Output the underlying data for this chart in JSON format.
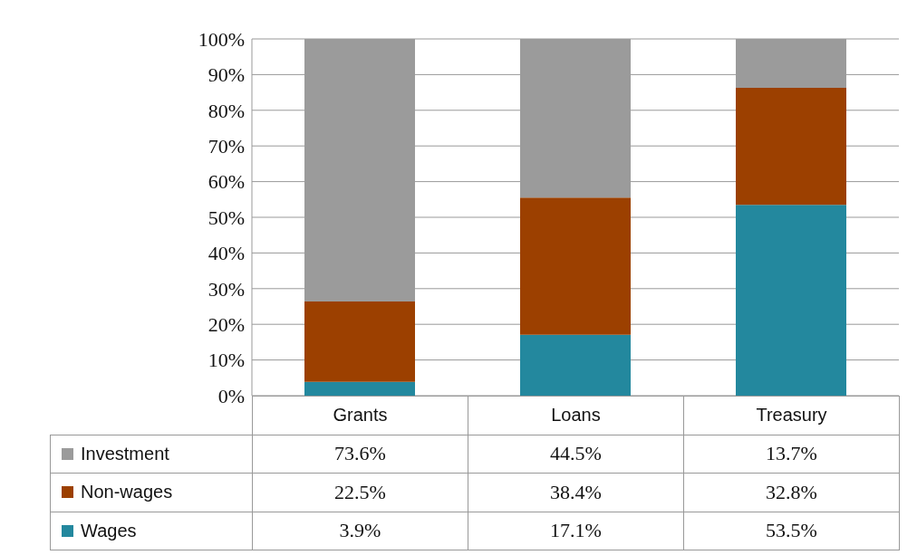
{
  "chart_data": {
    "type": "bar",
    "stacked": true,
    "categories": [
      "Grants",
      "Loans",
      "Treasury"
    ],
    "series": [
      {
        "name": "Wages",
        "color": "#23889e",
        "values": [
          3.9,
          17.1,
          53.5
        ],
        "value_labels": [
          "3.9%",
          "17.1%",
          "53.5%"
        ]
      },
      {
        "name": "Non-wages",
        "color": "#9c4000",
        "values": [
          22.5,
          38.4,
          32.8
        ],
        "value_labels": [
          "22.5%",
          "38.4%",
          "32.8%"
        ]
      },
      {
        "name": "Investment",
        "color": "#9b9b9b",
        "values": [
          73.6,
          44.5,
          13.7
        ],
        "value_labels": [
          "73.6%",
          "44.5%",
          "13.7%"
        ]
      }
    ],
    "ylim": [
      0,
      100
    ],
    "yticks": [
      {
        "value": 0,
        "label": "0%"
      },
      {
        "value": 10,
        "label": "10%"
      },
      {
        "value": 20,
        "label": "20%"
      },
      {
        "value": 30,
        "label": "30%"
      },
      {
        "value": 40,
        "label": "40%"
      },
      {
        "value": 50,
        "label": "50%"
      },
      {
        "value": 60,
        "label": "60%"
      },
      {
        "value": 70,
        "label": "70%"
      },
      {
        "value": 80,
        "label": "80%"
      },
      {
        "value": 90,
        "label": "90%"
      },
      {
        "value": 100,
        "label": "100%"
      }
    ],
    "grid": "y",
    "legend": "bottom"
  }
}
